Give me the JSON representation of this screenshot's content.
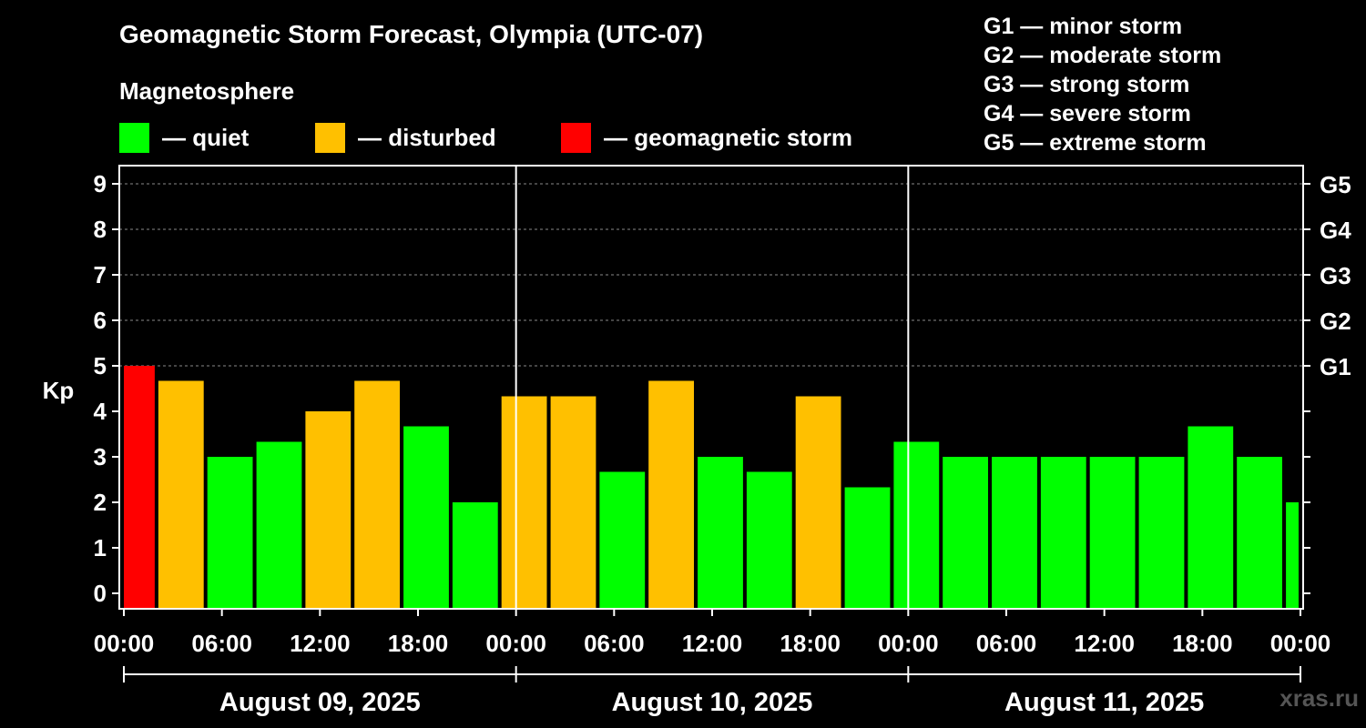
{
  "watermark": "xras.ru",
  "legend": {
    "heading": "Magnetosphere",
    "items": [
      {
        "label": "— quiet",
        "color": "#00ff00"
      },
      {
        "label": "— disturbed",
        "color": "#ffc000"
      },
      {
        "label": "— geomagnetic storm",
        "color": "#ff0000"
      }
    ]
  },
  "storm_scale": [
    "G1 — minor storm",
    "G2 — moderate storm",
    "G3 — strong storm",
    "G4 — severe storm",
    "G5 — extreme storm"
  ],
  "chart_data": {
    "type": "bar",
    "title": "Geomagnetic Storm Forecast, Olympia (UTC-07)",
    "ylabel": "Kp",
    "ylim": [
      0,
      9
    ],
    "y_ticks": [
      "0",
      "1",
      "2",
      "3",
      "4",
      "5",
      "6",
      "7",
      "8",
      "9"
    ],
    "right_ticks": [
      {
        "kp": 5,
        "label": "G1"
      },
      {
        "kp": 6,
        "label": "G2"
      },
      {
        "kp": 7,
        "label": "G3"
      },
      {
        "kp": 8,
        "label": "G4"
      },
      {
        "kp": 9,
        "label": "G5"
      }
    ],
    "x_hours": [
      0,
      72
    ],
    "x_ticks": [
      {
        "h": 0,
        "label": "00:00"
      },
      {
        "h": 6,
        "label": "06:00"
      },
      {
        "h": 12,
        "label": "12:00"
      },
      {
        "h": 18,
        "label": "18:00"
      },
      {
        "h": 24,
        "label": "00:00"
      },
      {
        "h": 30,
        "label": "06:00"
      },
      {
        "h": 36,
        "label": "12:00"
      },
      {
        "h": 42,
        "label": "18:00"
      },
      {
        "h": 48,
        "label": "00:00"
      },
      {
        "h": 54,
        "label": "06:00"
      },
      {
        "h": 60,
        "label": "12:00"
      },
      {
        "h": 66,
        "label": "18:00"
      },
      {
        "h": 72,
        "label": "00:00"
      }
    ],
    "days": [
      {
        "label": "August 09, 2025",
        "start": 0,
        "end": 24
      },
      {
        "label": "August 10, 2025",
        "start": 24,
        "end": 48
      },
      {
        "label": "August 11, 2025",
        "start": 48,
        "end": 72
      }
    ],
    "day_dividers": [
      24,
      48
    ],
    "grid": true,
    "bars": [
      {
        "start": 0,
        "end": 2,
        "kp": 5.0,
        "level": "storm"
      },
      {
        "start": 2,
        "end": 5,
        "kp": 4.67,
        "level": "disturbed"
      },
      {
        "start": 5,
        "end": 8,
        "kp": 3.0,
        "level": "quiet"
      },
      {
        "start": 8,
        "end": 11,
        "kp": 3.33,
        "level": "quiet"
      },
      {
        "start": 11,
        "end": 14,
        "kp": 4.0,
        "level": "disturbed"
      },
      {
        "start": 14,
        "end": 17,
        "kp": 4.67,
        "level": "disturbed"
      },
      {
        "start": 17,
        "end": 20,
        "kp": 3.67,
        "level": "quiet"
      },
      {
        "start": 20,
        "end": 23,
        "kp": 2.0,
        "level": "quiet"
      },
      {
        "start": 23,
        "end": 26,
        "kp": 4.33,
        "level": "disturbed"
      },
      {
        "start": 26,
        "end": 29,
        "kp": 4.33,
        "level": "disturbed"
      },
      {
        "start": 29,
        "end": 32,
        "kp": 2.67,
        "level": "quiet"
      },
      {
        "start": 32,
        "end": 35,
        "kp": 4.67,
        "level": "disturbed"
      },
      {
        "start": 35,
        "end": 38,
        "kp": 3.0,
        "level": "quiet"
      },
      {
        "start": 38,
        "end": 41,
        "kp": 2.67,
        "level": "quiet"
      },
      {
        "start": 41,
        "end": 44,
        "kp": 4.33,
        "level": "disturbed"
      },
      {
        "start": 44,
        "end": 47,
        "kp": 2.33,
        "level": "quiet"
      },
      {
        "start": 47,
        "end": 50,
        "kp": 3.33,
        "level": "quiet"
      },
      {
        "start": 50,
        "end": 53,
        "kp": 3.0,
        "level": "quiet"
      },
      {
        "start": 53,
        "end": 56,
        "kp": 3.0,
        "level": "quiet"
      },
      {
        "start": 56,
        "end": 59,
        "kp": 3.0,
        "level": "quiet"
      },
      {
        "start": 59,
        "end": 62,
        "kp": 3.0,
        "level": "quiet"
      },
      {
        "start": 62,
        "end": 65,
        "kp": 3.0,
        "level": "quiet"
      },
      {
        "start": 65,
        "end": 68,
        "kp": 3.67,
        "level": "quiet"
      },
      {
        "start": 68,
        "end": 71,
        "kp": 3.0,
        "level": "quiet"
      },
      {
        "start": 71,
        "end": 72,
        "kp": 2.0,
        "level": "quiet"
      }
    ],
    "level_colors": {
      "quiet": "#00ff00",
      "disturbed": "#ffc000",
      "storm": "#ff0000"
    }
  }
}
